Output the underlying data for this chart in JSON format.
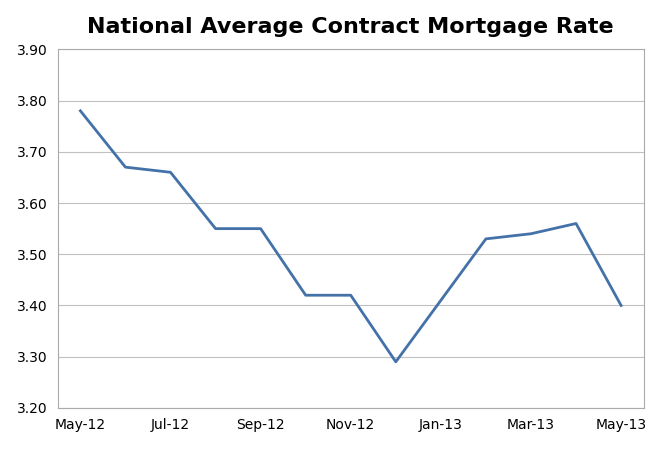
{
  "title": "National Average Contract Mortgage Rate",
  "x_labels": [
    "May-12",
    "Jul-12",
    "Sep-12",
    "Nov-12",
    "Jan-13",
    "Mar-13",
    "May-13"
  ],
  "x_tick_positions": [
    0,
    2,
    4,
    6,
    8,
    10,
    12
  ],
  "x_values": [
    0,
    1,
    2,
    3,
    4,
    5,
    6,
    7,
    8,
    9,
    10,
    11,
    12
  ],
  "y_values": [
    3.78,
    3.67,
    3.66,
    3.55,
    3.55,
    3.42,
    3.42,
    3.29,
    3.41,
    3.53,
    3.54,
    3.56,
    3.4
  ],
  "ylim": [
    3.2,
    3.9
  ],
  "yticks": [
    3.2,
    3.3,
    3.4,
    3.5,
    3.6,
    3.7,
    3.8,
    3.9
  ],
  "line_color": "#4472a8",
  "line_width": 2.0,
  "background_color": "#ffffff",
  "plot_bg_color": "#ffffff",
  "grid_color": "#c0c0c0",
  "spine_color": "#aaaaaa",
  "title_fontsize": 16,
  "tick_fontsize": 10,
  "xlim_left": -0.5,
  "xlim_right": 12.5
}
